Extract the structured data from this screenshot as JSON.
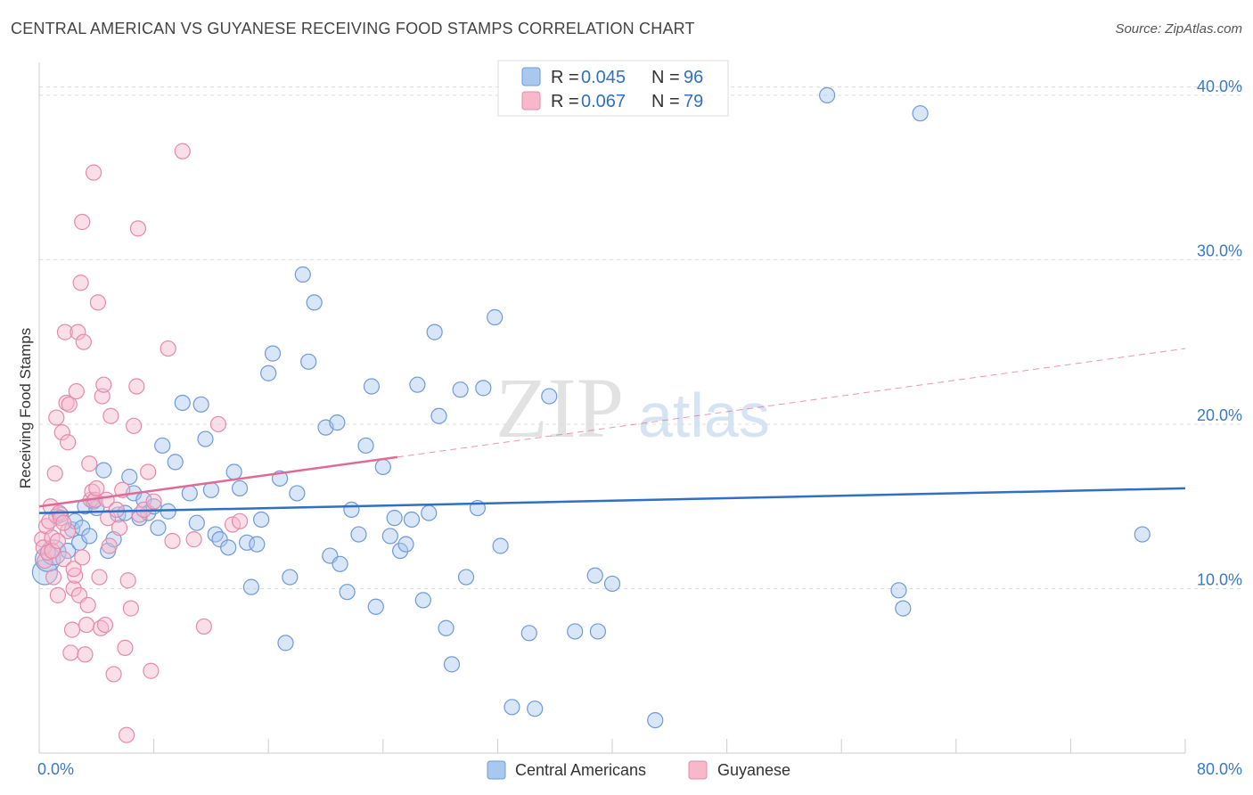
{
  "header": {
    "title": "CENTRAL AMERICAN VS GUYANESE RECEIVING FOOD STAMPS CORRELATION CHART",
    "source": "Source: ZipAtlas.com"
  },
  "watermark": {
    "zip": "ZIP",
    "atlas": "atlas"
  },
  "legend": {
    "rows": [
      {
        "r_label": "R = ",
        "r_value": "0.045",
        "n_label": "N = ",
        "n_value": "96",
        "color": "#a9c8f0",
        "stroke": "#6f9ad8"
      },
      {
        "r_label": "R = ",
        "r_value": "0.067",
        "n_label": "N = ",
        "n_value": "79",
        "color": "#f7b8cc",
        "stroke": "#e58aa8"
      }
    ]
  },
  "bottom_legend": {
    "items": [
      {
        "label": "Central Americans",
        "color": "#a9c8f0",
        "stroke": "#6f9ad8"
      },
      {
        "label": "Guyanese",
        "color": "#f7b8cc",
        "stroke": "#e58aa8"
      }
    ]
  },
  "chart_data": {
    "type": "scatter",
    "title": "CENTRAL AMERICAN VS GUYANESE RECEIVING FOOD STAMPS CORRELATION CHART",
    "xlabel": "",
    "ylabel": "Receiving Food Stamps",
    "xlim": [
      0,
      80
    ],
    "ylim": [
      0,
      42
    ],
    "x_tick_labels": [
      "0.0%",
      "80.0%"
    ],
    "y_ticks": [
      10,
      20,
      30,
      40
    ],
    "y_tick_labels": [
      "10.0%",
      "20.0%",
      "30.0%",
      "40.0%"
    ],
    "grid": true,
    "legend_position": "top-center",
    "series": [
      {
        "name": "Central Americans",
        "color": "#a9c8f0",
        "stroke": "#6f9ad8",
        "trend": {
          "x": [
            0,
            80
          ],
          "y": [
            14.6,
            16.1
          ],
          "color": "#2f6fc6"
        },
        "points": [
          [
            0.4,
            11.0
          ],
          [
            0.6,
            11.8
          ],
          [
            1.0,
            12.2
          ],
          [
            1.2,
            14.4
          ],
          [
            1.5,
            14.5
          ],
          [
            2.0,
            12.3
          ],
          [
            2.3,
            13.6
          ],
          [
            2.5,
            14.1
          ],
          [
            2.8,
            12.8
          ],
          [
            3.0,
            13.7
          ],
          [
            3.2,
            15.0
          ],
          [
            3.5,
            13.2
          ],
          [
            3.8,
            15.3
          ],
          [
            4.0,
            14.9
          ],
          [
            4.5,
            17.2
          ],
          [
            4.8,
            12.3
          ],
          [
            5.2,
            13.0
          ],
          [
            5.5,
            14.5
          ],
          [
            6.0,
            14.6
          ],
          [
            6.3,
            16.8
          ],
          [
            6.6,
            15.8
          ],
          [
            7.0,
            14.3
          ],
          [
            7.3,
            15.4
          ],
          [
            7.6,
            14.6
          ],
          [
            8.0,
            15.0
          ],
          [
            8.3,
            13.7
          ],
          [
            8.6,
            18.7
          ],
          [
            9.0,
            14.7
          ],
          [
            9.5,
            17.7
          ],
          [
            10.0,
            21.3
          ],
          [
            10.5,
            15.8
          ],
          [
            11.0,
            14.0
          ],
          [
            11.3,
            21.2
          ],
          [
            11.6,
            19.1
          ],
          [
            12.0,
            16.0
          ],
          [
            12.3,
            13.3
          ],
          [
            12.6,
            13.0
          ],
          [
            13.2,
            12.5
          ],
          [
            13.6,
            17.1
          ],
          [
            14.0,
            16.1
          ],
          [
            14.5,
            12.8
          ],
          [
            14.8,
            10.1
          ],
          [
            15.2,
            12.7
          ],
          [
            15.5,
            14.2
          ],
          [
            16.0,
            23.1
          ],
          [
            16.3,
            24.3
          ],
          [
            16.8,
            16.7
          ],
          [
            17.2,
            6.7
          ],
          [
            17.5,
            10.7
          ],
          [
            18.0,
            15.8
          ],
          [
            18.4,
            29.1
          ],
          [
            18.8,
            23.8
          ],
          [
            19.2,
            27.4
          ],
          [
            20.0,
            19.8
          ],
          [
            20.3,
            12.0
          ],
          [
            20.8,
            20.1
          ],
          [
            21.0,
            11.5
          ],
          [
            21.5,
            9.8
          ],
          [
            21.8,
            14.8
          ],
          [
            22.3,
            13.3
          ],
          [
            22.8,
            18.7
          ],
          [
            23.2,
            22.3
          ],
          [
            23.5,
            8.9
          ],
          [
            24.0,
            17.4
          ],
          [
            24.5,
            13.2
          ],
          [
            24.8,
            14.3
          ],
          [
            25.2,
            12.3
          ],
          [
            25.6,
            12.7
          ],
          [
            26.0,
            14.2
          ],
          [
            26.4,
            22.4
          ],
          [
            26.8,
            9.3
          ],
          [
            27.2,
            14.6
          ],
          [
            27.6,
            25.6
          ],
          [
            27.9,
            20.5
          ],
          [
            28.4,
            7.6
          ],
          [
            28.8,
            5.4
          ],
          [
            29.4,
            22.1
          ],
          [
            29.8,
            10.7
          ],
          [
            30.6,
            14.9
          ],
          [
            31.0,
            22.2
          ],
          [
            31.8,
            26.5
          ],
          [
            32.2,
            12.6
          ],
          [
            33.0,
            2.8
          ],
          [
            34.2,
            7.3
          ],
          [
            34.6,
            2.7
          ],
          [
            35.6,
            21.7
          ],
          [
            37.4,
            7.4
          ],
          [
            38.8,
            10.8
          ],
          [
            39.0,
            7.4
          ],
          [
            40.0,
            10.3
          ],
          [
            43.0,
            2.0
          ],
          [
            55.0,
            40.0
          ],
          [
            60.0,
            9.9
          ],
          [
            60.3,
            8.8
          ],
          [
            61.5,
            38.9
          ],
          [
            77.0,
            13.3
          ]
        ]
      },
      {
        "name": "Guyanese",
        "color": "#f7b8cc",
        "stroke": "#e58aa8",
        "trend": {
          "x": [
            0,
            25
          ],
          "y": [
            15.0,
            18.0
          ],
          "dashed_to": [
            80,
            24.6
          ],
          "color": "#e06a96"
        },
        "points": [
          [
            0.2,
            13.0
          ],
          [
            0.3,
            12.5
          ],
          [
            0.4,
            11.7
          ],
          [
            0.5,
            13.8
          ],
          [
            0.6,
            12.2
          ],
          [
            0.7,
            14.1
          ],
          [
            0.8,
            15.0
          ],
          [
            0.9,
            13.1
          ],
          [
            1.0,
            10.7
          ],
          [
            1.1,
            17.0
          ],
          [
            1.2,
            20.4
          ],
          [
            1.3,
            9.6
          ],
          [
            1.4,
            14.6
          ],
          [
            1.5,
            14.3
          ],
          [
            1.6,
            19.5
          ],
          [
            1.7,
            11.8
          ],
          [
            1.8,
            25.6
          ],
          [
            1.9,
            21.3
          ],
          [
            2.0,
            18.9
          ],
          [
            2.1,
            21.2
          ],
          [
            2.2,
            6.1
          ],
          [
            2.3,
            7.5
          ],
          [
            2.4,
            10.0
          ],
          [
            2.5,
            10.8
          ],
          [
            2.6,
            22.0
          ],
          [
            2.7,
            25.6
          ],
          [
            2.8,
            9.6
          ],
          [
            2.9,
            28.6
          ],
          [
            3.0,
            32.3
          ],
          [
            3.1,
            25.0
          ],
          [
            3.2,
            6.0
          ],
          [
            3.3,
            7.8
          ],
          [
            3.4,
            9.0
          ],
          [
            3.5,
            17.6
          ],
          [
            3.6,
            15.4
          ],
          [
            3.7,
            15.9
          ],
          [
            3.8,
            35.3
          ],
          [
            3.9,
            15.4
          ],
          [
            4.0,
            16.1
          ],
          [
            4.1,
            27.4
          ],
          [
            4.2,
            10.7
          ],
          [
            4.3,
            7.6
          ],
          [
            4.4,
            21.7
          ],
          [
            4.5,
            22.4
          ],
          [
            4.6,
            7.8
          ],
          [
            4.7,
            15.4
          ],
          [
            4.8,
            14.3
          ],
          [
            5.0,
            20.5
          ],
          [
            5.2,
            4.8
          ],
          [
            5.4,
            14.8
          ],
          [
            5.6,
            13.7
          ],
          [
            5.8,
            16.0
          ],
          [
            6.0,
            6.4
          ],
          [
            6.1,
            1.1
          ],
          [
            6.2,
            10.5
          ],
          [
            6.4,
            8.8
          ],
          [
            6.6,
            19.9
          ],
          [
            6.8,
            22.3
          ],
          [
            6.9,
            31.9
          ],
          [
            7.0,
            14.5
          ],
          [
            7.3,
            14.8
          ],
          [
            7.6,
            17.1
          ],
          [
            7.8,
            5.0
          ],
          [
            8.0,
            15.3
          ],
          [
            9.0,
            24.6
          ],
          [
            9.3,
            12.9
          ],
          [
            10.0,
            36.6
          ],
          [
            10.8,
            13.0
          ],
          [
            11.5,
            7.7
          ],
          [
            12.5,
            20.0
          ],
          [
            13.5,
            13.9
          ],
          [
            14.0,
            14.1
          ],
          [
            4.9,
            12.6
          ],
          [
            2.0,
            13.5
          ],
          [
            1.7,
            14.0
          ],
          [
            3.0,
            11.9
          ],
          [
            0.9,
            12.3
          ],
          [
            2.4,
            11.2
          ],
          [
            1.3,
            12.9
          ]
        ]
      }
    ]
  }
}
